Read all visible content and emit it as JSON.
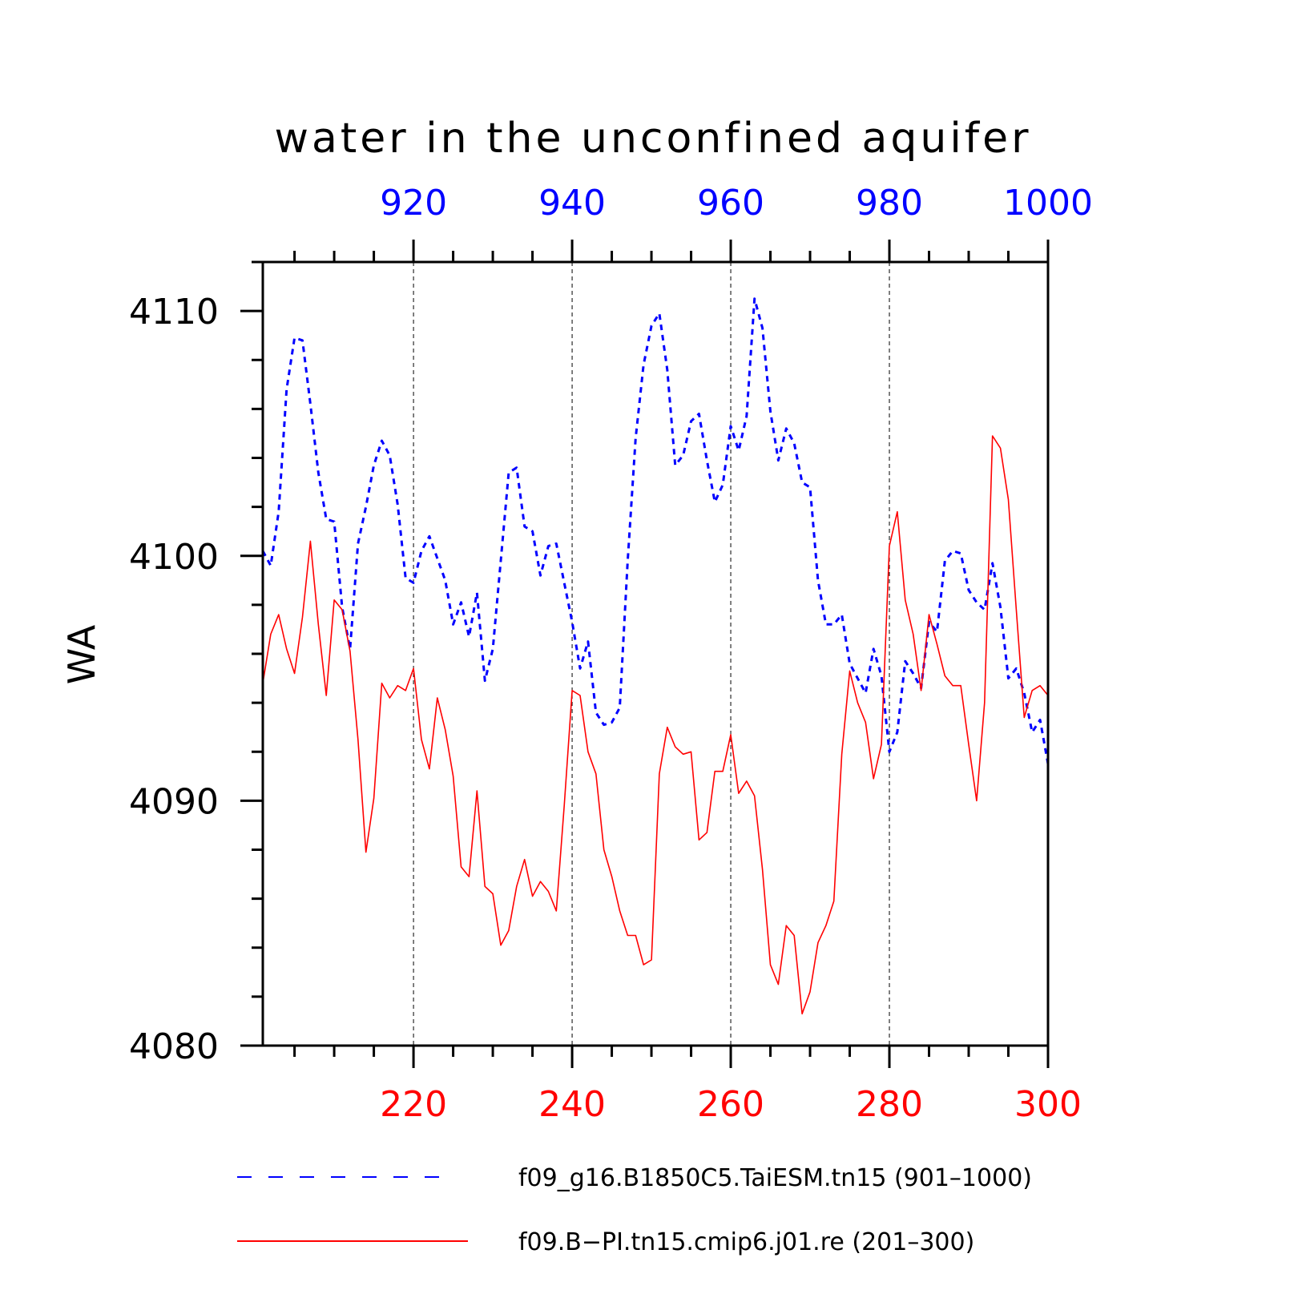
{
  "chart_data": {
    "type": "line",
    "title": "water in the unconfined aquifer",
    "ylabel": "WA",
    "ylim": [
      4080,
      4112
    ],
    "yticks": [
      4080,
      4090,
      4100,
      4110
    ],
    "grid": "vertical-dashed",
    "colors": {
      "series_blue": "#0000ff",
      "series_red": "#ff0000",
      "axis": "#000000"
    },
    "x_top": {
      "range": [
        901,
        1000
      ],
      "ticks": [
        920,
        940,
        960,
        980,
        1000
      ],
      "color": "#0000ff"
    },
    "x_bottom": {
      "range": [
        201,
        300
      ],
      "ticks": [
        220,
        240,
        260,
        280,
        300
      ],
      "color": "#ff0000"
    },
    "series": [
      {
        "name": "f09_g16.B1850C5.TaiESM.tn15 (901–1000)",
        "axis": "top",
        "style": "dashed",
        "x_start": 901,
        "values": [
          4100.2,
          4099.6,
          4101.8,
          4106.8,
          4108.9,
          4108.8,
          4106.2,
          4103.4,
          4101.5,
          4101.4,
          4097.9,
          4096.2,
          4100.5,
          4102.0,
          4103.7,
          4104.7,
          4104.1,
          4102.1,
          4099.1,
          4098.9,
          4100.2,
          4100.8,
          4099.9,
          4099.0,
          4097.2,
          4098.1,
          4096.7,
          4098.5,
          4094.9,
          4096.2,
          4099.8,
          4103.4,
          4103.6,
          4101.2,
          4101.0,
          4099.2,
          4100.4,
          4100.5,
          4098.9,
          4097.3,
          4095.4,
          4096.5,
          4093.6,
          4093.1,
          4093.2,
          4093.8,
          4099.8,
          4104.8,
          4107.8,
          4109.4,
          4109.9,
          4107.6,
          4103.7,
          4104.1,
          4105.5,
          4105.8,
          4103.9,
          4102.2,
          4102.9,
          4105.3,
          4104.3,
          4105.7,
          4110.5,
          4109.3,
          4105.9,
          4103.9,
          4105.2,
          4104.6,
          4103.0,
          4102.8,
          4099.0,
          4097.2,
          4097.2,
          4097.6,
          4095.6,
          4095.0,
          4094.4,
          4096.2,
          4095.1,
          4092.0,
          4092.8,
          4095.7,
          4095.2,
          4094.6,
          4097.3,
          4096.9,
          4099.8,
          4100.2,
          4100.1,
          4098.6,
          4098.1,
          4097.8,
          4099.7,
          4097.9,
          4095.0,
          4095.4,
          4094.4,
          4092.8,
          4093.3,
          4091.5
        ]
      },
      {
        "name": "f09.B−PI.tn15.cmip6.j01.re (201–300)",
        "axis": "bottom",
        "style": "solid",
        "x_start": 201,
        "values": [
          4094.8,
          4096.8,
          4097.6,
          4096.2,
          4095.2,
          4097.5,
          4100.6,
          4097.2,
          4094.3,
          4098.2,
          4097.8,
          4096.1,
          4092.5,
          4087.9,
          4090.1,
          4094.8,
          4094.2,
          4094.7,
          4094.5,
          4095.4,
          4092.5,
          4091.3,
          4094.2,
          4092.9,
          4091.0,
          4087.3,
          4086.9,
          4090.4,
          4086.5,
          4086.2,
          4084.1,
          4084.7,
          4086.5,
          4087.6,
          4086.1,
          4086.7,
          4086.3,
          4085.5,
          4089.8,
          4094.5,
          4094.3,
          4092.0,
          4091.1,
          4088.0,
          4086.9,
          4085.5,
          4084.5,
          4084.5,
          4083.3,
          4083.5,
          4091.1,
          4093.0,
          4092.2,
          4091.9,
          4092.0,
          4088.4,
          4088.7,
          4091.2,
          4091.2,
          4092.7,
          4090.3,
          4090.8,
          4090.2,
          4087.2,
          4083.3,
          4082.5,
          4084.9,
          4084.5,
          4081.3,
          4082.2,
          4084.2,
          4084.9,
          4085.9,
          4091.9,
          4095.3,
          4094.0,
          4093.2,
          4090.9,
          4092.3,
          4100.4,
          4101.8,
          4098.2,
          4096.8,
          4094.5,
          4097.6,
          4096.4,
          4095.1,
          4094.7,
          4094.7,
          4092.3,
          4090.0,
          4094.0,
          4104.9,
          4104.4,
          4102.3,
          4097.8,
          4093.4,
          4094.5,
          4094.7,
          4094.3
        ]
      }
    ]
  }
}
